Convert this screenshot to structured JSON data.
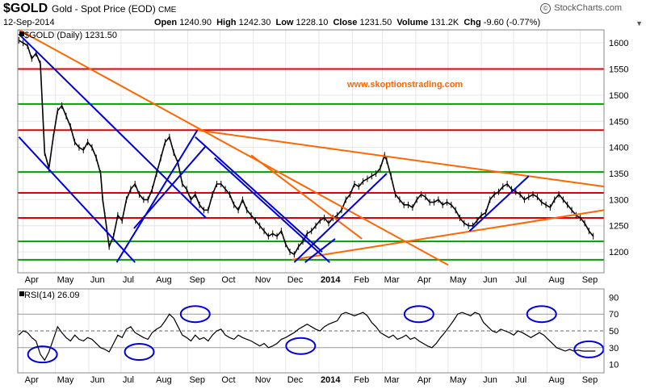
{
  "header": {
    "ticker": "$GOLD",
    "description": "Gold - Spot Price (EOD)",
    "exchange": "CME",
    "date": "12-Sep-2014",
    "open_label": "Open",
    "open": "1240.90",
    "high_label": "High",
    "high": "1242.30",
    "low_label": "Low",
    "low": "1228.10",
    "close_label": "Close",
    "close": "1231.50",
    "volume_label": "Volume",
    "volume": "131.2K",
    "chg_label": "Chg",
    "chg": "-9.60 (-0.77%)",
    "brand": "StockCharts.com",
    "brand_icon": "copyright-icon",
    "dropdown_icon": "triangle-down-icon"
  },
  "chart_data": [
    {
      "type": "line",
      "legend": "$GOLD (Daily) 1231.50",
      "watermark": "www.skoptionstrading.com",
      "ylim": [
        1160,
        1625
      ],
      "yticks": [
        1200,
        1250,
        1300,
        1350,
        1400,
        1450,
        1500,
        1550,
        1600
      ],
      "x_labels": [
        "Apr",
        "May",
        "Jun",
        "Jul",
        "Aug",
        "Sep",
        "Oct",
        "Nov",
        "Dec",
        "2014",
        "Feb",
        "Mar",
        "Apr",
        "May",
        "Jun",
        "Jul",
        "Aug",
        "Sep"
      ],
      "x_label_days": [
        0,
        30,
        61,
        91,
        122,
        153,
        183,
        214,
        244,
        275,
        306,
        334,
        365,
        395,
        426,
        456,
        487,
        518
      ],
      "x_range_days": [
        -5,
        540
      ],
      "series": [
        {
          "days": [
            -4,
            0,
            4,
            8,
            12,
            16,
            20,
            24,
            28,
            32,
            36,
            40,
            44,
            48,
            52,
            56,
            60,
            64,
            68,
            72,
            74,
            76,
            78,
            80,
            84,
            88,
            92,
            96,
            100,
            104,
            108,
            112,
            116,
            120,
            124,
            128,
            132,
            136,
            140,
            144,
            148,
            152,
            156,
            160,
            164,
            168,
            172,
            176,
            180,
            184,
            188,
            192,
            196,
            200,
            204,
            208,
            212,
            216,
            220,
            224,
            228,
            232,
            236,
            240,
            244,
            248,
            252,
            256,
            260,
            264,
            268,
            272,
            276,
            280,
            284,
            288,
            292,
            296,
            300,
            304,
            308,
            312,
            316,
            320,
            324,
            328,
            332,
            336,
            338,
            342,
            346,
            350,
            354,
            358,
            362,
            366,
            370,
            374,
            378,
            382,
            386,
            390,
            394,
            398,
            402,
            406,
            410,
            414,
            418,
            422,
            426,
            430,
            434,
            438,
            442,
            446,
            450,
            454,
            458,
            462,
            466,
            470,
            474,
            478,
            482,
            486,
            490,
            494,
            498,
            502,
            506,
            510,
            514,
            518,
            522,
            526,
            530
          ],
          "values": [
            1605,
            1600,
            1595,
            1570,
            1580,
            1560,
            1390,
            1360,
            1420,
            1470,
            1480,
            1460,
            1440,
            1410,
            1400,
            1395,
            1410,
            1400,
            1380,
            1350,
            1300,
            1270,
            1240,
            1210,
            1230,
            1270,
            1260,
            1300,
            1320,
            1330,
            1310,
            1300,
            1300,
            1320,
            1350,
            1380,
            1410,
            1420,
            1390,
            1370,
            1330,
            1320,
            1300,
            1310,
            1290,
            1280,
            1280,
            1310,
            1330,
            1330,
            1320,
            1310,
            1290,
            1280,
            1300,
            1280,
            1270,
            1260,
            1250,
            1240,
            1230,
            1235,
            1230,
            1240,
            1215,
            1200,
            1195,
            1210,
            1220,
            1235,
            1240,
            1250,
            1260,
            1265,
            1255,
            1265,
            1270,
            1280,
            1300,
            1310,
            1330,
            1325,
            1335,
            1340,
            1345,
            1350,
            1360,
            1385,
            1375,
            1345,
            1310,
            1300,
            1290,
            1290,
            1285,
            1300,
            1310,
            1305,
            1295,
            1295,
            1300,
            1290,
            1295,
            1290,
            1280,
            1265,
            1255,
            1250,
            1250,
            1260,
            1270,
            1275,
            1300,
            1310,
            1315,
            1325,
            1330,
            1320,
            1315,
            1310,
            1300,
            1305,
            1310,
            1305,
            1295,
            1290,
            1285,
            1300,
            1310,
            1300,
            1290,
            1280,
            1270,
            1265,
            1255,
            1240,
            1230
          ]
        }
      ],
      "horizontal_lines": [
        {
          "value": 1185,
          "color": "#00a000"
        },
        {
          "value": 1220,
          "color": "#00a000"
        },
        {
          "value": 1265,
          "color": "#e00000"
        },
        {
          "value": 1313,
          "color": "#e00000"
        },
        {
          "value": 1353,
          "color": "#00a000"
        },
        {
          "value": 1433,
          "color": "#e00000"
        },
        {
          "value": 1483,
          "color": "#00a000"
        },
        {
          "value": 1550,
          "color": "#e00000"
        }
      ],
      "trend_lines": [
        {
          "color": "#ff6600",
          "points": [
            [
              -4,
              1625
            ],
            [
              395,
              1175
            ]
          ]
        },
        {
          "color": "#ff6600",
          "points": [
            [
              162,
              1433
            ],
            [
              540,
              1325
            ]
          ]
        },
        {
          "color": "#ff6600",
          "points": [
            [
              212,
              1385
            ],
            [
              315,
              1225
            ]
          ]
        },
        {
          "color": "#ff6600",
          "points": [
            [
              250,
              1185
            ],
            [
              540,
              1280
            ]
          ]
        },
        {
          "color": "#0000dd",
          "points": [
            [
              -4,
              1617
            ],
            [
              170,
              1265
            ]
          ]
        },
        {
          "color": "#0000dd",
          "points": [
            [
              -4,
              1420
            ],
            [
              104,
              1180
            ]
          ]
        },
        {
          "color": "#0000dd",
          "points": [
            [
              87,
              1180
            ],
            [
              162,
              1433
            ]
          ]
        },
        {
          "color": "#0000dd",
          "points": [
            [
              103,
              1245
            ],
            [
              170,
              1403
            ]
          ]
        },
        {
          "color": "#0000dd",
          "points": [
            [
              160,
              1420
            ],
            [
              278,
              1200
            ]
          ]
        },
        {
          "color": "#0000dd",
          "points": [
            [
              178,
              1380
            ],
            [
              285,
              1180
            ]
          ]
        },
        {
          "color": "#0000dd",
          "points": [
            [
              252,
              1180
            ],
            [
              338,
              1350
            ]
          ]
        },
        {
          "color": "#0000dd",
          "points": [
            [
              262,
              1180
            ],
            [
              290,
              1225
            ]
          ]
        },
        {
          "color": "#0000dd",
          "points": [
            [
              415,
              1240
            ],
            [
              470,
              1345
            ]
          ]
        }
      ]
    },
    {
      "type": "line",
      "legend": "RSI(14) 26.09",
      "ylim": [
        0,
        100
      ],
      "yticks": [
        10,
        30,
        50,
        70,
        90
      ],
      "reference_lines": [
        30,
        50,
        70
      ],
      "x_labels": [
        "Apr",
        "May",
        "Jun",
        "Jul",
        "Aug",
        "Sep",
        "Oct",
        "Nov",
        "Dec",
        "2014",
        "Feb",
        "Mar",
        "Apr",
        "May",
        "Jun",
        "Jul",
        "Aug",
        "Sep"
      ],
      "series": [
        {
          "days": [
            -4,
            0,
            4,
            8,
            12,
            16,
            20,
            24,
            28,
            32,
            36,
            40,
            44,
            48,
            52,
            56,
            60,
            64,
            68,
            72,
            76,
            80,
            84,
            88,
            92,
            96,
            100,
            104,
            108,
            112,
            116,
            120,
            124,
            128,
            132,
            136,
            140,
            144,
            148,
            152,
            156,
            160,
            164,
            168,
            172,
            176,
            180,
            184,
            188,
            192,
            196,
            200,
            204,
            208,
            212,
            216,
            220,
            224,
            228,
            232,
            236,
            240,
            244,
            248,
            252,
            256,
            260,
            264,
            268,
            272,
            276,
            280,
            284,
            288,
            292,
            296,
            300,
            304,
            308,
            312,
            316,
            320,
            324,
            328,
            332,
            336,
            340,
            344,
            348,
            352,
            356,
            360,
            364,
            368,
            372,
            376,
            380,
            384,
            388,
            392,
            396,
            400,
            404,
            408,
            412,
            416,
            420,
            424,
            428,
            432,
            436,
            440,
            444,
            448,
            452,
            456,
            460,
            464,
            468,
            472,
            476,
            480,
            484,
            488,
            492,
            496,
            500,
            504,
            508,
            512,
            516,
            520,
            524,
            528,
            532
          ],
          "values": [
            45,
            50,
            48,
            42,
            38,
            22,
            15,
            25,
            40,
            55,
            48,
            42,
            38,
            45,
            40,
            38,
            42,
            40,
            35,
            30,
            28,
            25,
            35,
            45,
            42,
            52,
            55,
            48,
            45,
            42,
            40,
            48,
            52,
            55,
            62,
            70,
            65,
            55,
            45,
            42,
            38,
            45,
            40,
            42,
            38,
            45,
            50,
            52,
            45,
            42,
            40,
            45,
            42,
            40,
            38,
            35,
            32,
            35,
            30,
            32,
            35,
            40,
            42,
            45,
            48,
            52,
            55,
            58,
            55,
            52,
            50,
            55,
            58,
            60,
            62,
            70,
            72,
            70,
            68,
            70,
            72,
            68,
            60,
            55,
            48,
            45,
            42,
            45,
            40,
            42,
            45,
            40,
            42,
            38,
            35,
            32,
            30,
            35,
            42,
            48,
            55,
            62,
            70,
            72,
            70,
            68,
            72,
            70,
            60,
            55,
            50,
            48,
            52,
            50,
            48,
            45,
            50,
            48,
            45,
            42,
            45,
            48,
            45,
            40,
            35,
            30,
            28,
            26,
            28,
            26,
            27,
            26,
            26,
            26,
            26
          ]
        }
      ],
      "circled_regions": [
        {
          "day_center": 18,
          "value_center": 22
        },
        {
          "day_center": 108,
          "value_center": 25
        },
        {
          "day_center": 160,
          "value_center": 70
        },
        {
          "day_center": 258,
          "value_center": 32
        },
        {
          "day_center": 368,
          "value_center": 70
        },
        {
          "day_center": 482,
          "value_center": 70
        },
        {
          "day_center": 526,
          "value_center": 28
        }
      ]
    }
  ]
}
